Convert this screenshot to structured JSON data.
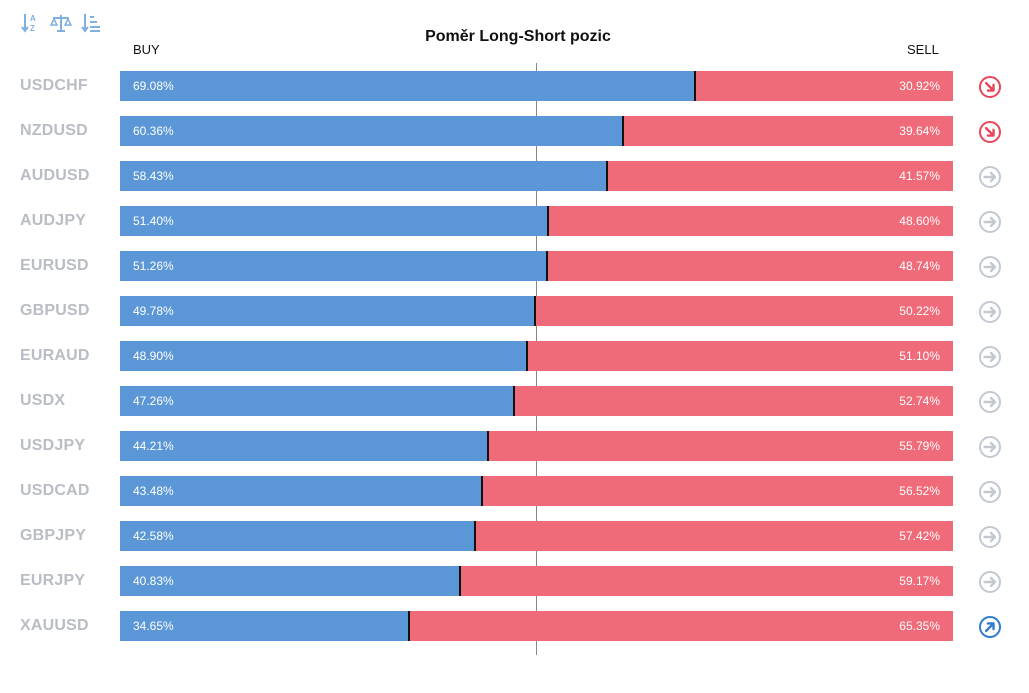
{
  "title": "Poměr Long-Short pozic",
  "labels": {
    "buy": "BUY",
    "sell": "SELL"
  },
  "toolbar": [
    {
      "name": "sort-alpha-icon"
    },
    {
      "name": "balance-scale-icon"
    },
    {
      "name": "sort-numeric-icon"
    }
  ],
  "colors": {
    "buy": "#5b97d6",
    "sell": "#f06b79",
    "trend_down": "#e8475a",
    "trend_neutral": "#c3c9d2",
    "trend_up": "#2f7bd0"
  },
  "chart_data": {
    "type": "bar",
    "stacked": true,
    "orientation": "horizontal",
    "title": "Poměr Long-Short pozic",
    "categories": [
      "USDCHF",
      "NZDUSD",
      "AUDUSD",
      "AUDJPY",
      "EURUSD",
      "GBPUSD",
      "EURAUD",
      "USDX",
      "USDJPY",
      "USDCAD",
      "GBPJPY",
      "EURJPY",
      "XAUUSD"
    ],
    "series": [
      {
        "name": "BUY",
        "values": [
          69.08,
          60.36,
          58.43,
          51.4,
          51.26,
          49.78,
          48.9,
          47.26,
          44.21,
          43.48,
          42.58,
          40.83,
          34.65
        ]
      },
      {
        "name": "SELL",
        "values": [
          30.92,
          39.64,
          41.57,
          48.6,
          48.74,
          50.22,
          51.1,
          52.74,
          55.79,
          56.52,
          57.42,
          59.17,
          65.35
        ]
      }
    ],
    "xlim": [
      0,
      100
    ],
    "rows": [
      {
        "pair": "USDCHF",
        "buy": 69.08,
        "sell": 30.92,
        "buy_label": "69.08%",
        "sell_label": "30.92%",
        "trend": "down"
      },
      {
        "pair": "NZDUSD",
        "buy": 60.36,
        "sell": 39.64,
        "buy_label": "60.36%",
        "sell_label": "39.64%",
        "trend": "down"
      },
      {
        "pair": "AUDUSD",
        "buy": 58.43,
        "sell": 41.57,
        "buy_label": "58.43%",
        "sell_label": "41.57%",
        "trend": "neutral"
      },
      {
        "pair": "AUDJPY",
        "buy": 51.4,
        "sell": 48.6,
        "buy_label": "51.40%",
        "sell_label": "48.60%",
        "trend": "neutral"
      },
      {
        "pair": "EURUSD",
        "buy": 51.26,
        "sell": 48.74,
        "buy_label": "51.26%",
        "sell_label": "48.74%",
        "trend": "neutral"
      },
      {
        "pair": "GBPUSD",
        "buy": 49.78,
        "sell": 50.22,
        "buy_label": "49.78%",
        "sell_label": "50.22%",
        "trend": "neutral"
      },
      {
        "pair": "EURAUD",
        "buy": 48.9,
        "sell": 51.1,
        "buy_label": "48.90%",
        "sell_label": "51.10%",
        "trend": "neutral"
      },
      {
        "pair": "USDX",
        "buy": 47.26,
        "sell": 52.74,
        "buy_label": "47.26%",
        "sell_label": "52.74%",
        "trend": "neutral"
      },
      {
        "pair": "USDJPY",
        "buy": 44.21,
        "sell": 55.79,
        "buy_label": "44.21%",
        "sell_label": "55.79%",
        "trend": "neutral"
      },
      {
        "pair": "USDCAD",
        "buy": 43.48,
        "sell": 56.52,
        "buy_label": "43.48%",
        "sell_label": "56.52%",
        "trend": "neutral"
      },
      {
        "pair": "GBPJPY",
        "buy": 42.58,
        "sell": 57.42,
        "buy_label": "42.58%",
        "sell_label": "57.42%",
        "trend": "neutral"
      },
      {
        "pair": "EURJPY",
        "buy": 40.83,
        "sell": 59.17,
        "buy_label": "40.83%",
        "sell_label": "59.17%",
        "trend": "neutral"
      },
      {
        "pair": "XAUUSD",
        "buy": 34.65,
        "sell": 65.35,
        "buy_label": "34.65%",
        "sell_label": "65.35%",
        "trend": "up"
      }
    ]
  }
}
